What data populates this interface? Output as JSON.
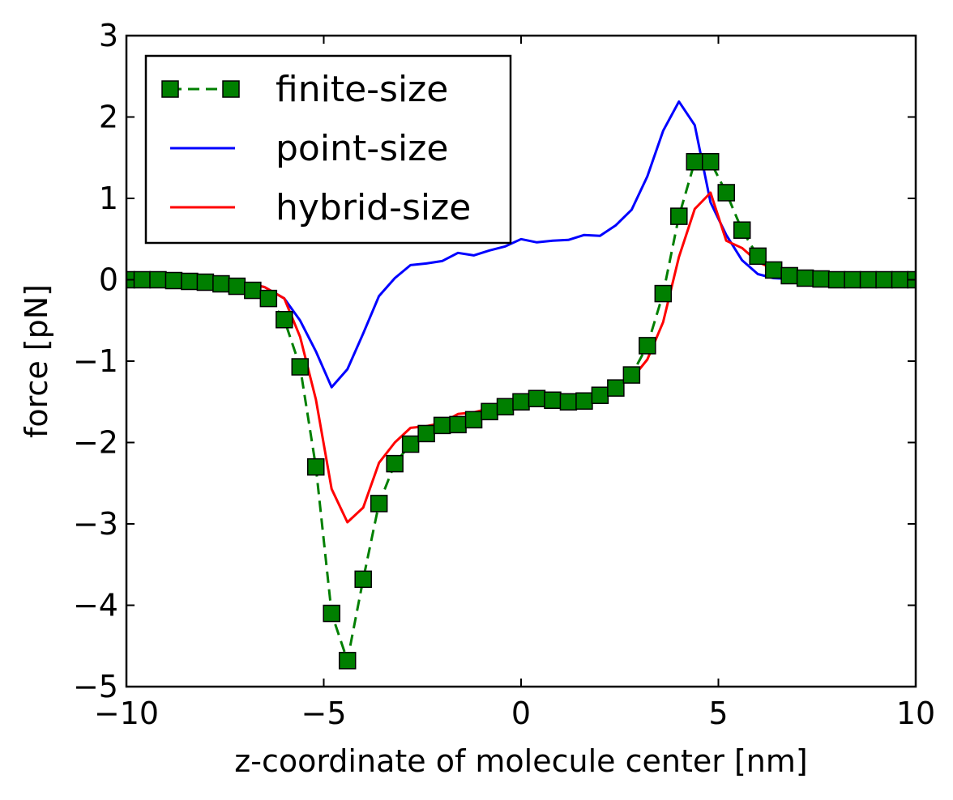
{
  "chart_data": {
    "type": "line",
    "xlabel": "z-coordinate of molecule center [nm]",
    "ylabel": "force [pN]",
    "xlim": [
      -10,
      10
    ],
    "ylim": [
      -5,
      3
    ],
    "xticks": [
      -10,
      -5,
      0,
      5,
      10
    ],
    "xtick_labels": [
      "−10",
      "−5",
      "0",
      "5",
      "10"
    ],
    "yticks": [
      -5,
      -4,
      -3,
      -2,
      -1,
      0,
      1,
      2,
      3
    ],
    "ytick_labels": [
      "−5",
      "−4",
      "−3",
      "−2",
      "−1",
      "0",
      "1",
      "2",
      "3"
    ],
    "grid": false,
    "legend_position": "top-left",
    "series": [
      {
        "name": "finite-size",
        "color": "#007f00",
        "style": "dashed-square-markers",
        "x": [
          -10.0,
          -9.6,
          -9.2,
          -8.8,
          -8.4,
          -8.0,
          -7.6,
          -7.2,
          -6.8,
          -6.4,
          -6.0,
          -5.6,
          -5.2,
          -4.8,
          -4.4,
          -4.0,
          -3.6,
          -3.2,
          -2.8,
          -2.4,
          -2.0,
          -1.6,
          -1.2,
          -0.8,
          -0.4,
          0.0,
          0.4,
          0.8,
          1.2,
          1.6,
          2.0,
          2.4,
          2.8,
          3.2,
          3.6,
          4.0,
          4.4,
          4.8,
          5.2,
          5.6,
          6.0,
          6.4,
          6.8,
          7.2,
          7.6,
          8.0,
          8.4,
          8.8,
          9.2,
          9.6,
          10.0
        ],
        "y": [
          0.0,
          0.0,
          0.0,
          -0.01,
          -0.02,
          -0.03,
          -0.05,
          -0.08,
          -0.13,
          -0.23,
          -0.49,
          -1.07,
          -2.3,
          -4.1,
          -4.68,
          -3.68,
          -2.75,
          -2.26,
          -2.02,
          -1.89,
          -1.79,
          -1.78,
          -1.72,
          -1.62,
          -1.56,
          -1.5,
          -1.46,
          -1.48,
          -1.5,
          -1.49,
          -1.42,
          -1.33,
          -1.17,
          -0.81,
          -0.17,
          0.78,
          1.45,
          1.45,
          1.07,
          0.61,
          0.29,
          0.12,
          0.05,
          0.02,
          0.01,
          0.0,
          0.0,
          0.0,
          0.0,
          0.0,
          0.0
        ]
      },
      {
        "name": "point-size",
        "color": "#0000ff",
        "style": "solid",
        "x": [
          -10.0,
          -9.0,
          -8.0,
          -7.0,
          -6.5,
          -6.0,
          -5.6,
          -5.2,
          -4.8,
          -4.4,
          -4.0,
          -3.6,
          -3.2,
          -2.8,
          -2.4,
          -2.0,
          -1.6,
          -1.2,
          -0.8,
          -0.4,
          0.0,
          0.4,
          0.8,
          1.2,
          1.6,
          2.0,
          2.4,
          2.8,
          3.2,
          3.6,
          4.0,
          4.4,
          4.8,
          5.2,
          5.6,
          6.0,
          6.4,
          6.8,
          7.2,
          8.0,
          9.0,
          10.0
        ],
        "y": [
          0.0,
          0.0,
          -0.01,
          -0.04,
          -0.09,
          -0.23,
          -0.5,
          -0.88,
          -1.32,
          -1.1,
          -0.66,
          -0.2,
          0.02,
          0.18,
          0.2,
          0.23,
          0.33,
          0.3,
          0.36,
          0.41,
          0.5,
          0.46,
          0.48,
          0.49,
          0.55,
          0.54,
          0.67,
          0.86,
          1.27,
          1.83,
          2.19,
          1.9,
          0.95,
          0.55,
          0.24,
          0.07,
          0.02,
          0.01,
          0.0,
          0.0,
          0.0,
          0.0
        ]
      },
      {
        "name": "hybrid-size",
        "color": "#ff0000",
        "style": "solid",
        "x": [
          -10.0,
          -9.0,
          -8.0,
          -7.0,
          -6.5,
          -6.0,
          -5.6,
          -5.2,
          -4.8,
          -4.4,
          -4.0,
          -3.6,
          -3.2,
          -2.8,
          -2.4,
          -2.0,
          -1.6,
          -1.2,
          -0.8,
          -0.4,
          0.0,
          0.4,
          0.8,
          1.2,
          1.6,
          2.0,
          2.4,
          2.8,
          3.2,
          3.6,
          4.0,
          4.4,
          4.8,
          5.2,
          5.6,
          6.0,
          6.4,
          6.8,
          7.2,
          8.0,
          9.0,
          10.0
        ],
        "y": [
          0.0,
          0.0,
          -0.01,
          -0.04,
          -0.09,
          -0.23,
          -0.7,
          -1.47,
          -2.57,
          -2.98,
          -2.8,
          -2.25,
          -2.0,
          -1.82,
          -1.8,
          -1.76,
          -1.65,
          -1.63,
          -1.58,
          -1.5,
          -1.44,
          -1.48,
          -1.47,
          -1.45,
          -1.4,
          -1.4,
          -1.3,
          -1.22,
          -0.98,
          -0.52,
          0.28,
          0.87,
          1.07,
          0.48,
          0.39,
          0.22,
          0.13,
          0.02,
          0.0,
          0.0,
          0.0,
          0.0
        ]
      }
    ]
  }
}
